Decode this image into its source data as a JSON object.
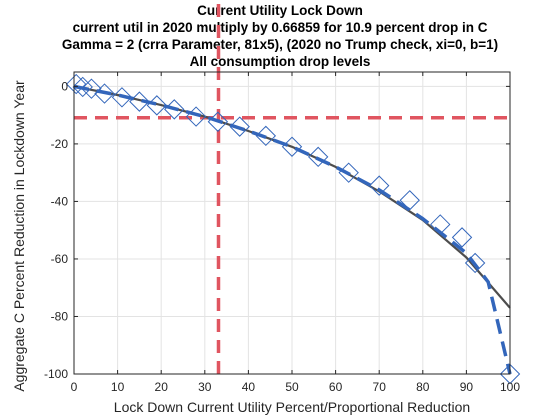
{
  "chart_data": {
    "type": "line",
    "title": [
      "Current Utility Lock Down",
      "current util in 2020 multiply by 0.66859 for 10.9 percent drop in C",
      "Gamma = 2 (crra Parameter, 81x5), (2020 no Trump check, xi=0, b=1)",
      "All consumption drop levels"
    ],
    "xlabel": "Lock Down Current Utility Percent/Proportional Reduction",
    "ylabel": "Aggregate C Percent Reduction in Lockdown Year",
    "xlim": [
      0,
      100
    ],
    "ylim": [
      -100,
      5
    ],
    "xticks": [
      0,
      10,
      20,
      30,
      40,
      50,
      60,
      70,
      80,
      90,
      100
    ],
    "yticks": [
      -100,
      -80,
      -60,
      -40,
      -20,
      0
    ],
    "grid": true,
    "series": [
      {
        "style": "solid-line",
        "color": "#4d4d4d",
        "x": [
          0,
          10,
          20,
          30,
          40,
          50,
          60,
          70,
          80,
          90,
          100
        ],
        "y": [
          0,
          -3,
          -6.5,
          -10.5,
          -15.5,
          -21,
          -28,
          -36.5,
          -46.5,
          -59.5,
          -77
        ]
      },
      {
        "style": "dashed-line",
        "color": "#3366bb",
        "x": [
          0,
          10,
          20,
          30,
          40,
          50,
          60,
          70,
          80,
          85,
          90,
          95,
          100
        ],
        "y": [
          0,
          -3,
          -6.5,
          -10.5,
          -15.5,
          -21,
          -28,
          -36,
          -46,
          -52,
          -58,
          -68,
          -100
        ]
      },
      {
        "style": "diamond-markers",
        "color": "#3366bb",
        "x": [
          0.5,
          2,
          4,
          7,
          11,
          15,
          19,
          23,
          28,
          33,
          38,
          44,
          50,
          56,
          63,
          70,
          77,
          84,
          89,
          92,
          100
        ],
        "y": [
          0.8,
          -0.2,
          -0.8,
          -2.5,
          -3.8,
          -5.3,
          -6.6,
          -8,
          -10.5,
          -12.3,
          -14,
          -17.2,
          -21,
          -24.5,
          -30,
          -34.5,
          -39.6,
          -48,
          -52.5,
          -61.4,
          -100
        ]
      }
    ],
    "reference_lines": [
      {
        "orientation": "horizontal",
        "value": -10.9,
        "color": "#e05560",
        "style": "dashed"
      },
      {
        "orientation": "vertical",
        "value": 33.141,
        "color": "#e05560",
        "style": "dashed"
      }
    ]
  }
}
